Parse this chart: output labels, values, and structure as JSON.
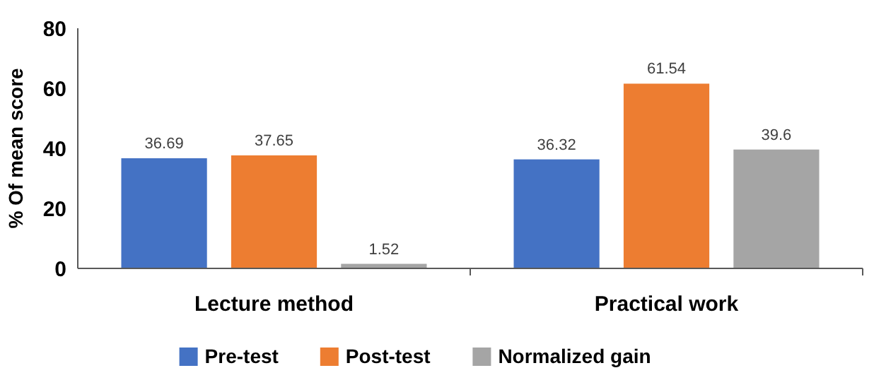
{
  "chart_data": {
    "type": "bar",
    "ylabel": "% Of mean score",
    "categories": [
      "Lecture method",
      "Practical work"
    ],
    "series": [
      {
        "name": "Pre-test",
        "color": "#4472c4",
        "values": [
          36.69,
          36.32
        ]
      },
      {
        "name": "Post-test",
        "color": "#ed7d31",
        "values": [
          37.65,
          61.54
        ]
      },
      {
        "name": "Normalized gain",
        "color": "#a5a5a5",
        "values": [
          1.52,
          39.6
        ]
      }
    ],
    "ylim": [
      0,
      80
    ],
    "yticks": [
      0,
      20,
      40,
      60,
      80
    ],
    "grid": false,
    "legend": "bottom",
    "data_labels": true
  }
}
